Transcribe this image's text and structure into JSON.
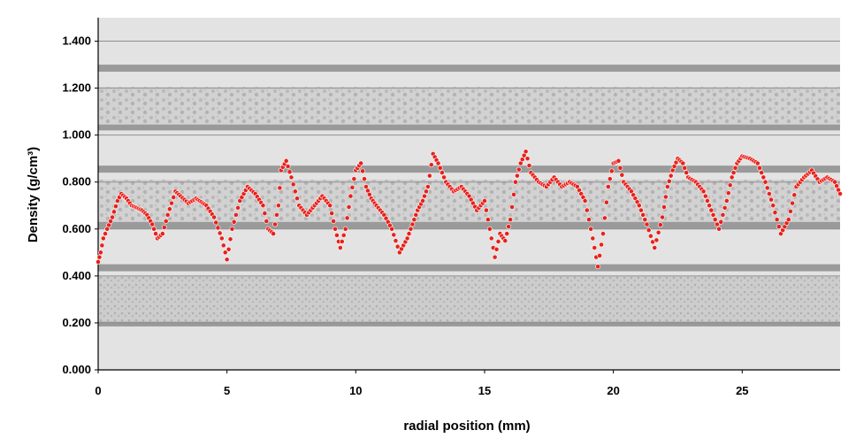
{
  "chart_data": {
    "type": "scatter",
    "xlabel": "radial position (mm)",
    "ylabel": "Density (g/cm³)",
    "xlim": [
      0,
      28.8
    ],
    "ylim": [
      0,
      1.5
    ],
    "x_ticks": [
      {
        "value": 0,
        "label": "0"
      },
      {
        "value": 5,
        "label": "5"
      },
      {
        "value": 10,
        "label": "10"
      },
      {
        "value": 15,
        "label": "15"
      },
      {
        "value": 20,
        "label": "20"
      },
      {
        "value": 25,
        "label": "25"
      }
    ],
    "y_ticks": [
      {
        "value": 0,
        "label": "0.000"
      },
      {
        "value": 0.2,
        "label": "0.200"
      },
      {
        "value": 0.4,
        "label": "0.400"
      },
      {
        "value": 0.6,
        "label": "0.600"
      },
      {
        "value": 0.8,
        "label": "0.800"
      },
      {
        "value": 1.0,
        "label": "1.000"
      },
      {
        "value": 1.2,
        "label": "1.200"
      },
      {
        "value": 1.4,
        "label": "1.400"
      }
    ],
    "grid": "horizontal",
    "background": "grayscale X-ray image of wood sample strips",
    "marker_color": "#e8211b",
    "marker_edge": "#ffffff",
    "series": [
      {
        "x": [
          0,
          0.1,
          0.2,
          0.35,
          0.55,
          0.75,
          0.9,
          1.1,
          1.3,
          1.5,
          1.7,
          1.9,
          2.1,
          2.3,
          2.5,
          2.7,
          3.0,
          3.2,
          3.5,
          3.8,
          4.2,
          4.5,
          4.8,
          5.0,
          5.2,
          5.5,
          5.8,
          6.1,
          6.4,
          6.6,
          6.8,
          7.0,
          7.1,
          7.3,
          7.5,
          7.8,
          8.1,
          8.4,
          8.7,
          9.0,
          9.2,
          9.4,
          9.6,
          9.8,
          10.0,
          10.2,
          10.4,
          10.6,
          10.8,
          11.1,
          11.4,
          11.7,
          12.0,
          12.2,
          12.4,
          12.6,
          12.8,
          13.0,
          13.2,
          13.5,
          13.8,
          14.1,
          14.4,
          14.7,
          15.0,
          15.2,
          15.4,
          15.6,
          15.8,
          16.0,
          16.2,
          16.4,
          16.6,
          16.8,
          17.1,
          17.4,
          17.7,
          18.0,
          18.3,
          18.6,
          18.9,
          19.2,
          19.4,
          19.6,
          19.8,
          20.0,
          20.2,
          20.4,
          20.7,
          21.0,
          21.3,
          21.6,
          21.9,
          22.1,
          22.3,
          22.5,
          22.7,
          22.9,
          23.2,
          23.5,
          23.8,
          24.1,
          24.4,
          24.6,
          24.8,
          25.0,
          25.3,
          25.6,
          25.9,
          26.2,
          26.5,
          26.8,
          27.1,
          27.4,
          27.7,
          28.0,
          28.3,
          28.6,
          28.8
        ],
        "y": [
          0.46,
          0.5,
          0.56,
          0.6,
          0.65,
          0.72,
          0.75,
          0.73,
          0.7,
          0.69,
          0.68,
          0.66,
          0.62,
          0.56,
          0.58,
          0.66,
          0.76,
          0.74,
          0.71,
          0.73,
          0.7,
          0.65,
          0.56,
          0.47,
          0.6,
          0.72,
          0.78,
          0.75,
          0.7,
          0.6,
          0.58,
          0.7,
          0.85,
          0.89,
          0.82,
          0.7,
          0.66,
          0.7,
          0.74,
          0.7,
          0.6,
          0.52,
          0.6,
          0.74,
          0.85,
          0.88,
          0.78,
          0.73,
          0.7,
          0.66,
          0.6,
          0.5,
          0.56,
          0.62,
          0.68,
          0.72,
          0.78,
          0.92,
          0.88,
          0.8,
          0.76,
          0.78,
          0.74,
          0.68,
          0.72,
          0.6,
          0.48,
          0.58,
          0.55,
          0.64,
          0.8,
          0.88,
          0.93,
          0.84,
          0.8,
          0.78,
          0.82,
          0.78,
          0.8,
          0.78,
          0.72,
          0.56,
          0.44,
          0.58,
          0.78,
          0.88,
          0.89,
          0.8,
          0.76,
          0.7,
          0.62,
          0.52,
          0.65,
          0.78,
          0.85,
          0.9,
          0.88,
          0.82,
          0.8,
          0.76,
          0.68,
          0.6,
          0.72,
          0.82,
          0.88,
          0.91,
          0.9,
          0.88,
          0.8,
          0.7,
          0.58,
          0.64,
          0.78,
          0.82,
          0.85,
          0.8,
          0.82,
          0.8,
          0.75
        ]
      }
    ]
  }
}
